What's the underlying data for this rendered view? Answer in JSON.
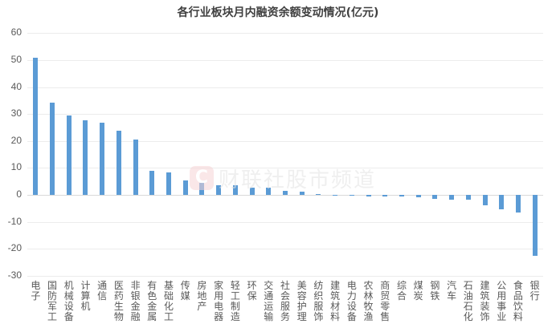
{
  "chart_data": {
    "type": "bar",
    "title": "各行业板块月内融资余额变动情况(亿元)",
    "xlabel": "",
    "ylabel": "",
    "ylim": [
      -30,
      60
    ],
    "yticks": [
      60,
      50,
      40,
      30,
      20,
      10,
      0,
      -10,
      -20,
      -30
    ],
    "grid": true,
    "legend": null,
    "bar_color": "#5b9bd5",
    "categories": [
      "电子",
      "国防军工",
      "机械设备",
      "计算机",
      "通信",
      "医药生物",
      "非银金融",
      "有色金属",
      "基础化工",
      "传媒",
      "房地产",
      "家用电器",
      "轻工制造",
      "环保",
      "交通运输",
      "社会服务",
      "美容护理",
      "纺织服饰",
      "建筑材料",
      "电力设备",
      "农林牧渔",
      "商贸零售",
      "综合",
      "煤炭",
      "钢铁",
      "汽车",
      "石油石化",
      "建筑装饰",
      "公用事业",
      "食品饮料",
      "银行"
    ],
    "values": [
      50.9,
      34.2,
      29.5,
      27.8,
      26.7,
      23.9,
      20.6,
      8.8,
      8.2,
      5.3,
      4.6,
      3.7,
      3.7,
      2.8,
      2.6,
      1.5,
      1.3,
      0.3,
      0.05,
      -0.4,
      -0.5,
      -0.6,
      -0.6,
      -1.0,
      -1.5,
      -1.7,
      -1.9,
      -3.8,
      -5.4,
      -6.6,
      -22.7
    ]
  },
  "watermark": {
    "logo_glyph": "C",
    "text": "财联社股市频道"
  }
}
